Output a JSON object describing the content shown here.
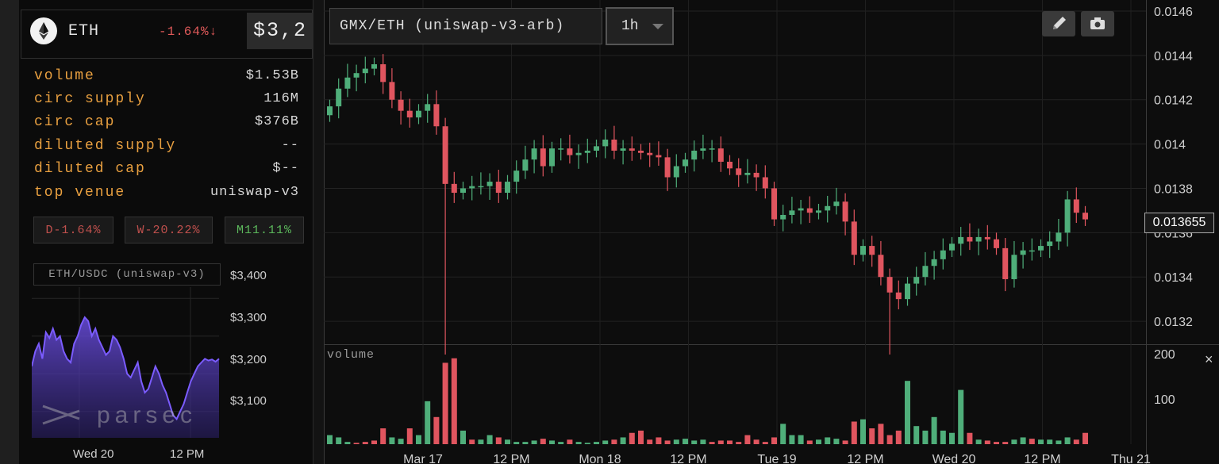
{
  "token": {
    "symbol": "ETH",
    "change": "-1.64%↓",
    "price": "$3,2",
    "logo_icon": "ethereum-icon"
  },
  "stats": [
    {
      "label": "volume",
      "value": "$1.53B"
    },
    {
      "label": "circ supply",
      "value": "116M"
    },
    {
      "label": "circ cap",
      "value": "$376B"
    },
    {
      "label": "diluted supply",
      "value": "--"
    },
    {
      "label": "diluted cap",
      "value": "$--"
    },
    {
      "label": "top venue",
      "value": "uniswap-v3"
    }
  ],
  "performance": [
    {
      "label": "D-1.64%",
      "color": "#c0504d"
    },
    {
      "label": "W-20.22%",
      "color": "#c0504d"
    },
    {
      "label": "M11.11%",
      "color": "#5cb85c"
    }
  ],
  "mini_chart": {
    "label": "ETH/USDC (uniswap-v3)",
    "y_ticks": [
      "$3,400",
      "$3,300",
      "$3,200",
      "$3,100"
    ],
    "x_ticks": [
      "Wed 20",
      "12 PM"
    ],
    "watermark": "parsec",
    "line_color": "#7b5cff"
  },
  "main_chart": {
    "pair": "GMX/ETH (uniswap-v3-arb)",
    "interval": "1h",
    "volume_label": "volume",
    "last_price": "0.013655",
    "tools": [
      "pencil-icon",
      "camera-icon"
    ],
    "colors": {
      "up": "#4fae7a",
      "down": "#e0555f"
    }
  },
  "chart_data": [
    {
      "type": "candlestick",
      "title": "GMX/ETH (uniswap-v3-arb)",
      "y_ticks": [
        "0.0146",
        "0.0144",
        "0.0142",
        "0.014",
        "0.0138",
        "0.0136",
        "0.0134",
        "0.0132"
      ],
      "ylim": [
        0.0131,
        0.01465
      ],
      "x_ticks": [
        "Mar 17",
        "12 PM",
        "Mon 18",
        "12 PM",
        "Tue 19",
        "12 PM",
        "Wed 20",
        "12 PM",
        "Thu 21"
      ],
      "close_series": [
        0.01417,
        0.01425,
        0.0143,
        0.01432,
        0.01434,
        0.01436,
        0.01428,
        0.0142,
        0.01415,
        0.01412,
        0.01415,
        0.01418,
        0.01408,
        0.01382,
        0.01378,
        0.0138,
        0.01381,
        0.01381,
        0.01383,
        0.01378,
        0.01383,
        0.01388,
        0.01393,
        0.01398,
        0.0139,
        0.01398,
        0.01398,
        0.01395,
        0.01396,
        0.01397,
        0.01399,
        0.01402,
        0.01397,
        0.01398,
        0.01397,
        0.01396,
        0.01395,
        0.01394,
        0.01385,
        0.0139,
        0.01393,
        0.01397,
        0.01398,
        0.01398,
        0.01392,
        0.01389,
        0.01386,
        0.01387,
        0.01385,
        0.0138,
        0.01366,
        0.01368,
        0.0137,
        0.01371,
        0.01369,
        0.0137,
        0.01372,
        0.01374,
        0.01365,
        0.0135,
        0.01354,
        0.0135,
        0.0134,
        0.01333,
        0.0133,
        0.01337,
        0.0134,
        0.01345,
        0.01348,
        0.01352,
        0.01355,
        0.01358,
        0.01356,
        0.01358,
        0.01357,
        0.01353,
        0.01339,
        0.0135,
        0.01352,
        0.01352,
        0.01354,
        0.01356,
        0.0136,
        0.01375,
        0.01369,
        0.01366
      ],
      "volume": {
        "y_ticks": [
          "200",
          "100"
        ],
        "ylim": [
          0,
          200
        ],
        "values": [
          20,
          15,
          5,
          3,
          5,
          8,
          35,
          15,
          12,
          35,
          20,
          95,
          60,
          180,
          190,
          30,
          10,
          10,
          20,
          15,
          10,
          5,
          5,
          8,
          12,
          8,
          5,
          10,
          5,
          3,
          5,
          8,
          10,
          15,
          25,
          30,
          10,
          15,
          8,
          10,
          12,
          8,
          10,
          5,
          8,
          8,
          5,
          20,
          10,
          5,
          15,
          45,
          20,
          20,
          8,
          10,
          15,
          12,
          8,
          50,
          55,
          35,
          45,
          20,
          30,
          140,
          40,
          30,
          60,
          30,
          25,
          120,
          25,
          10,
          8,
          5,
          5,
          10,
          15,
          12,
          10,
          10,
          8,
          15,
          10,
          25
        ],
        "directions": [
          "u",
          "u",
          "u",
          "d",
          "d",
          "d",
          "d",
          "u",
          "u",
          "d",
          "u",
          "u",
          "d",
          "d",
          "d",
          "u",
          "d",
          "u",
          "u",
          "d",
          "u",
          "u",
          "u",
          "u",
          "d",
          "u",
          "u",
          "d",
          "u",
          "u",
          "u",
          "u",
          "d",
          "u",
          "d",
          "d",
          "d",
          "d",
          "d",
          "u",
          "u",
          "u",
          "u",
          "d",
          "d",
          "d",
          "d",
          "d",
          "d",
          "d",
          "d",
          "u",
          "u",
          "u",
          "d",
          "u",
          "u",
          "u",
          "d",
          "d",
          "u",
          "d",
          "d",
          "d",
          "d",
          "u",
          "u",
          "u",
          "u",
          "u",
          "u",
          "u",
          "d",
          "u",
          "d",
          "d",
          "d",
          "u",
          "u",
          "d",
          "u",
          "u",
          "u",
          "u",
          "d",
          "d"
        ]
      }
    },
    {
      "type": "line",
      "title": "ETH/USDC (uniswap-v3)",
      "y_ticks": [
        "$3,400",
        "$3,300",
        "$3,200",
        "$3,100"
      ],
      "ylim": [
        3030,
        3430
      ],
      "x_ticks": [
        "Wed 20",
        "12 PM"
      ],
      "values": [
        3220,
        3260,
        3280,
        3240,
        3310,
        3295,
        3320,
        3290,
        3300,
        3260,
        3240,
        3230,
        3280,
        3300,
        3330,
        3350,
        3340,
        3300,
        3320,
        3290,
        3270,
        3250,
        3260,
        3300,
        3290,
        3270,
        3240,
        3200,
        3190,
        3210,
        3230,
        3180,
        3150,
        3160,
        3190,
        3220,
        3200,
        3170,
        3150,
        3120,
        3090,
        3080,
        3100,
        3120,
        3150,
        3180,
        3200,
        3220,
        3230,
        3240,
        3235,
        3238,
        3232,
        3240
      ]
    }
  ]
}
